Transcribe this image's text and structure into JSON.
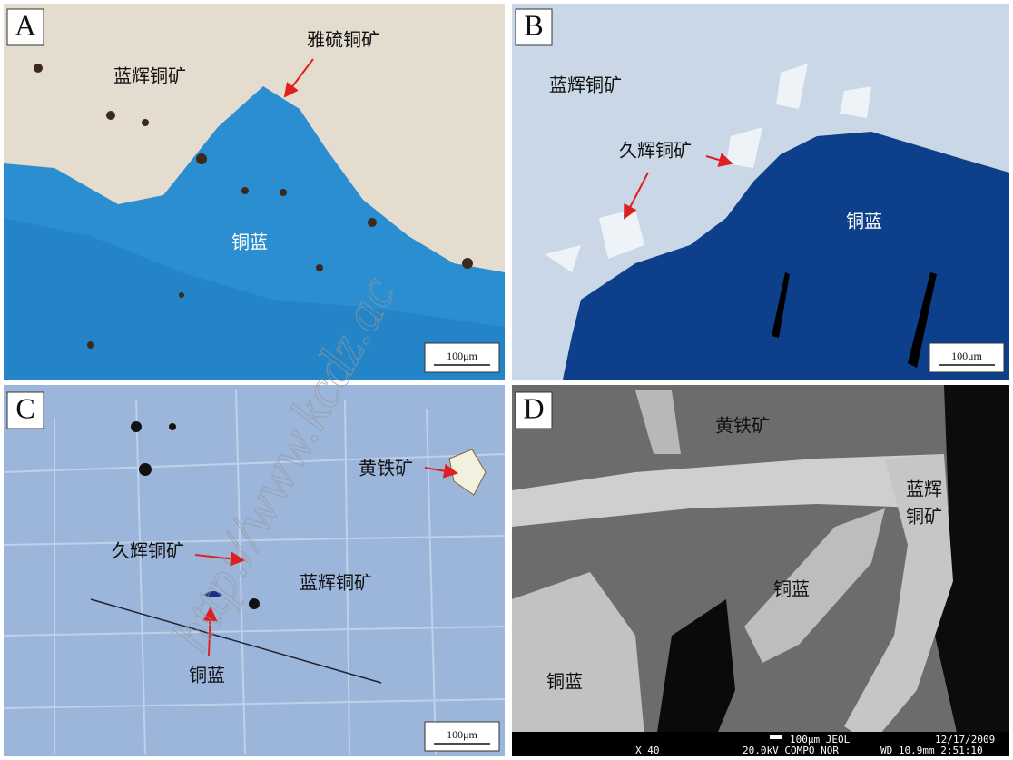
{
  "watermark": "http://www.kcdz.ac",
  "panels": [
    {
      "letter": "A",
      "labels": [
        "蓝辉铜矿",
        "雅硫铜矿",
        "铜蓝"
      ],
      "scale_bar": "100μm"
    },
    {
      "letter": "B",
      "labels": [
        "蓝辉铜矿",
        "久辉铜矿",
        "铜蓝"
      ],
      "scale_bar": "100μm"
    },
    {
      "letter": "C",
      "labels": [
        "黄铁矿",
        "久辉铜矿",
        "蓝辉铜矿",
        "铜蓝"
      ],
      "scale_bar": "100μm"
    },
    {
      "letter": "D",
      "labels": [
        "黄铁矿",
        "蓝辉",
        "铜矿",
        "铜蓝",
        "铜蓝"
      ],
      "sem_info": [
        "100μm JEOL",
        "12/17/2009",
        "X 40",
        "20.0kV COMPO  NOR",
        "WD 10.9mm 2:51:10"
      ]
    }
  ]
}
